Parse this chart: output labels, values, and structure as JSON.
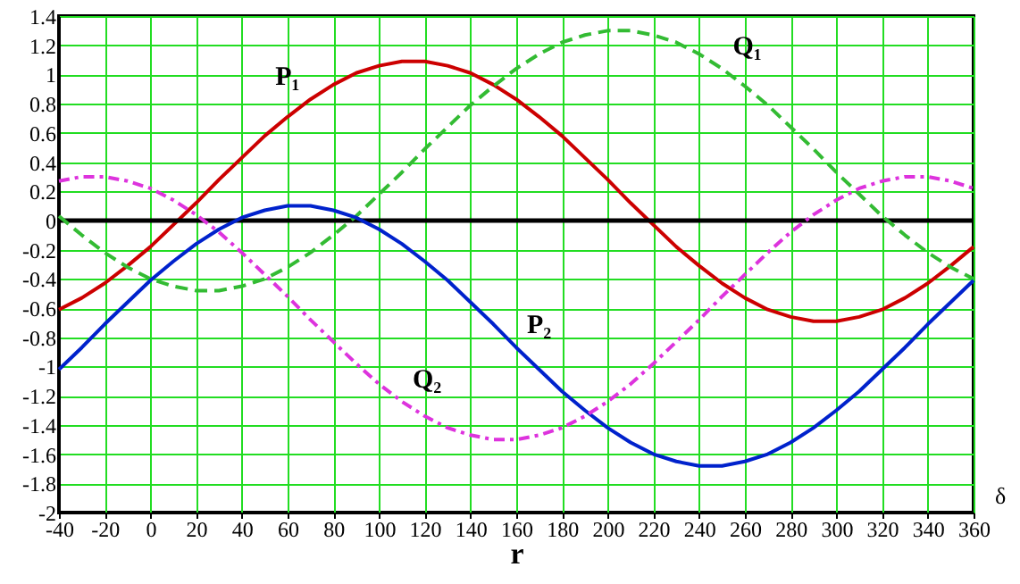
{
  "chart_data": {
    "type": "line",
    "xlabel": "r",
    "x": [
      -40,
      -30,
      -20,
      -10,
      0,
      10,
      20,
      30,
      40,
      50,
      60,
      70,
      80,
      90,
      100,
      110,
      120,
      130,
      140,
      150,
      160,
      170,
      180,
      190,
      200,
      210,
      220,
      230,
      240,
      250,
      260,
      270,
      280,
      290,
      300,
      310,
      320,
      330,
      340,
      350,
      360
    ],
    "series": [
      {
        "color": "#cc0000",
        "line_style": "solid",
        "values": [
          -0.61,
          -0.53,
          -0.43,
          -0.31,
          -0.18,
          -0.03,
          0.12,
          0.28,
          0.43,
          0.58,
          0.71,
          0.83,
          0.93,
          1.01,
          1.06,
          1.09,
          1.09,
          1.06,
          1.01,
          0.93,
          0.83,
          0.71,
          0.58,
          0.43,
          0.28,
          0.12,
          -0.03,
          -0.18,
          -0.31,
          -0.43,
          -0.53,
          -0.61,
          -0.66,
          -0.69,
          -0.69,
          -0.66,
          -0.61,
          -0.53,
          -0.43,
          -0.31,
          -0.18
        ]
      },
      {
        "color": "#33bb33",
        "line_style": "dashed",
        "values": [
          0.03,
          -0.1,
          -0.22,
          -0.32,
          -0.4,
          -0.45,
          -0.48,
          -0.48,
          -0.45,
          -0.4,
          -0.32,
          -0.22,
          -0.1,
          0.03,
          0.18,
          0.33,
          0.49,
          0.64,
          0.79,
          0.92,
          1.04,
          1.14,
          1.22,
          1.27,
          1.3,
          1.3,
          1.27,
          1.22,
          1.14,
          1.04,
          0.92,
          0.79,
          0.64,
          0.49,
          0.33,
          0.18,
          0.03,
          -0.1,
          -0.22,
          -0.32,
          -0.4
        ]
      },
      {
        "color": "#0022cc",
        "line_style": "solid",
        "values": [
          -1.02,
          -0.87,
          -0.71,
          -0.56,
          -0.41,
          -0.28,
          -0.16,
          -0.06,
          0.02,
          0.07,
          0.1,
          0.1,
          0.07,
          0.02,
          -0.06,
          -0.16,
          -0.28,
          -0.41,
          -0.56,
          -0.71,
          -0.87,
          -1.02,
          -1.17,
          -1.3,
          -1.42,
          -1.52,
          -1.6,
          -1.65,
          -1.68,
          -1.68,
          -1.65,
          -1.6,
          -1.52,
          -1.42,
          -1.3,
          -1.17,
          -1.02,
          -0.87,
          -0.71,
          -0.56,
          -0.41
        ]
      },
      {
        "color": "#dd33dd",
        "line_style": "dotted",
        "values": [
          0.27,
          0.3,
          0.3,
          0.27,
          0.22,
          0.14,
          0.04,
          -0.08,
          -0.22,
          -0.37,
          -0.52,
          -0.68,
          -0.83,
          -0.98,
          -1.12,
          -1.24,
          -1.34,
          -1.42,
          -1.47,
          -1.5,
          -1.5,
          -1.47,
          -1.42,
          -1.34,
          -1.24,
          -1.12,
          -0.98,
          -0.83,
          -0.68,
          -0.52,
          -0.37,
          -0.22,
          -0.08,
          0.04,
          0.14,
          0.22,
          0.27,
          0.3,
          0.3,
          0.27,
          0.22
        ]
      }
    ],
    "annotations": [
      {
        "text": "P₁",
        "x": 70,
        "y": 0.83
      },
      {
        "text": "Q₁",
        "x": 250,
        "y": 1.04
      },
      {
        "text": "P₂",
        "x": 160,
        "y": -0.87
      },
      {
        "text": "Q₂",
        "x": 110,
        "y": -1.24
      },
      "δ"
    ],
    "ref_lines": [
      {
        "axis": "y",
        "value": 0,
        "color": "#000000",
        "line_style": "solid"
      }
    ],
    "xlim": [
      -40,
      360
    ],
    "ylim": [
      -2,
      1.4
    ],
    "xticks": [
      -40,
      -20,
      0,
      20,
      40,
      60,
      80,
      100,
      120,
      140,
      160,
      180,
      200,
      220,
      240,
      260,
      280,
      300,
      320,
      340,
      360
    ],
    "yticks": [
      -2,
      -1.8,
      -1.6,
      -1.4,
      -1.2,
      -1,
      -0.8,
      -0.6,
      -0.4,
      -0.2,
      0,
      0.2,
      0.4,
      0.6,
      0.8,
      1,
      1.2,
      1.4
    ],
    "grid": true,
    "marker": "none"
  }
}
